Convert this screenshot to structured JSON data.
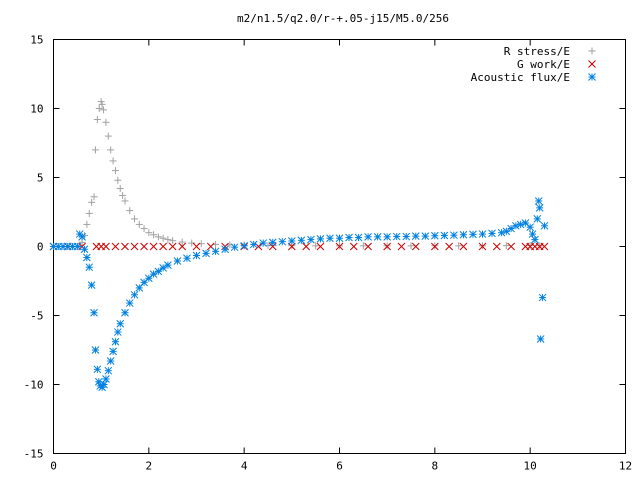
{
  "chart_data": {
    "type": "scatter",
    "title": "m2/n1.5/q2.0/r-+.05-j15/M5.0/256",
    "xlabel": "",
    "ylabel": "",
    "xlim": [
      0,
      12
    ],
    "ylim": [
      -15,
      15
    ],
    "x_ticks": [
      0,
      2,
      4,
      6,
      8,
      10,
      12
    ],
    "y_ticks": [
      -15,
      -10,
      -5,
      0,
      5,
      10,
      15
    ],
    "x_tick_labels": [
      "0",
      "2",
      "4",
      "6",
      "8",
      "10",
      "12"
    ],
    "y_tick_labels": [
      "-15",
      "-10",
      "-5",
      "0",
      "5",
      "10",
      "15"
    ],
    "grid": false,
    "legend_position": "top-right",
    "series": [
      {
        "name": "R stress/E",
        "marker": "plus",
        "color": "#a0a0a0",
        "points": [
          [
            0.0,
            0.0
          ],
          [
            0.1,
            0.0
          ],
          [
            0.2,
            0.0
          ],
          [
            0.3,
            0.0
          ],
          [
            0.4,
            0.0
          ],
          [
            0.5,
            0.0
          ],
          [
            0.55,
            0.1
          ],
          [
            0.6,
            0.3
          ],
          [
            0.65,
            0.8
          ],
          [
            0.7,
            1.6
          ],
          [
            0.75,
            2.4
          ],
          [
            0.8,
            3.2
          ],
          [
            0.85,
            3.6
          ],
          [
            0.88,
            7.0
          ],
          [
            0.92,
            9.2
          ],
          [
            0.96,
            10.0
          ],
          [
            1.0,
            10.5
          ],
          [
            1.02,
            10.3
          ],
          [
            1.05,
            9.9
          ],
          [
            1.1,
            9.0
          ],
          [
            1.15,
            8.0
          ],
          [
            1.2,
            7.0
          ],
          [
            1.25,
            6.2
          ],
          [
            1.3,
            5.5
          ],
          [
            1.35,
            4.8
          ],
          [
            1.4,
            4.2
          ],
          [
            1.45,
            3.7
          ],
          [
            1.5,
            3.3
          ],
          [
            1.6,
            2.6
          ],
          [
            1.7,
            2.0
          ],
          [
            1.8,
            1.6
          ],
          [
            1.9,
            1.3
          ],
          [
            2.0,
            1.0
          ],
          [
            2.1,
            0.85
          ],
          [
            2.2,
            0.7
          ],
          [
            2.3,
            0.6
          ],
          [
            2.4,
            0.5
          ],
          [
            2.5,
            0.42
          ],
          [
            2.7,
            0.32
          ],
          [
            2.9,
            0.25
          ],
          [
            3.1,
            0.2
          ],
          [
            3.4,
            0.15
          ],
          [
            3.7,
            0.12
          ],
          [
            4.0,
            0.1
          ],
          [
            4.5,
            0.08
          ],
          [
            5.0,
            0.06
          ],
          [
            5.5,
            0.05
          ],
          [
            6.0,
            0.05
          ],
          [
            6.5,
            0.05
          ],
          [
            7.0,
            0.05
          ],
          [
            7.5,
            0.05
          ],
          [
            8.0,
            0.05
          ],
          [
            8.5,
            0.05
          ],
          [
            9.0,
            0.05
          ],
          [
            9.5,
            0.06
          ],
          [
            10.0,
            0.08
          ],
          [
            10.2,
            0.05
          ]
        ]
      },
      {
        "name": "G work/E",
        "marker": "cross",
        "color": "#cc0000",
        "points": [
          [
            0.0,
            0.0
          ],
          [
            0.3,
            0.0
          ],
          [
            0.6,
            0.0
          ],
          [
            0.9,
            0.0
          ],
          [
            1.0,
            0.0
          ],
          [
            1.1,
            0.0
          ],
          [
            1.3,
            0.0
          ],
          [
            1.5,
            0.0
          ],
          [
            1.7,
            0.0
          ],
          [
            1.9,
            0.0
          ],
          [
            2.1,
            0.0
          ],
          [
            2.3,
            0.0
          ],
          [
            2.5,
            0.0
          ],
          [
            2.7,
            0.0
          ],
          [
            3.0,
            0.0
          ],
          [
            3.3,
            0.0
          ],
          [
            3.6,
            0.0
          ],
          [
            4.0,
            0.0
          ],
          [
            4.3,
            0.0
          ],
          [
            4.6,
            0.0
          ],
          [
            5.0,
            0.0
          ],
          [
            5.3,
            0.0
          ],
          [
            5.6,
            0.0
          ],
          [
            6.0,
            0.0
          ],
          [
            6.3,
            0.0
          ],
          [
            6.6,
            0.0
          ],
          [
            7.0,
            0.0
          ],
          [
            7.3,
            0.0
          ],
          [
            7.6,
            0.0
          ],
          [
            8.0,
            0.0
          ],
          [
            8.3,
            0.0
          ],
          [
            8.6,
            0.0
          ],
          [
            9.0,
            0.0
          ],
          [
            9.3,
            0.0
          ],
          [
            9.6,
            0.0
          ],
          [
            9.9,
            0.0
          ],
          [
            10.0,
            0.0
          ],
          [
            10.1,
            0.0
          ],
          [
            10.2,
            0.0
          ],
          [
            10.3,
            0.0
          ]
        ]
      },
      {
        "name": "Acoustic flux/E",
        "marker": "star",
        "color": "#0080e0",
        "points": [
          [
            0.0,
            0.0
          ],
          [
            0.1,
            0.0
          ],
          [
            0.2,
            0.0
          ],
          [
            0.3,
            0.0
          ],
          [
            0.4,
            0.0
          ],
          [
            0.5,
            0.0
          ],
          [
            0.55,
            0.9
          ],
          [
            0.6,
            0.7
          ],
          [
            0.65,
            -0.2
          ],
          [
            0.7,
            -0.8
          ],
          [
            0.75,
            -1.5
          ],
          [
            0.8,
            -2.8
          ],
          [
            0.85,
            -4.8
          ],
          [
            0.88,
            -7.5
          ],
          [
            0.92,
            -8.9
          ],
          [
            0.95,
            -9.8
          ],
          [
            0.98,
            -10.1
          ],
          [
            1.02,
            -10.2
          ],
          [
            1.06,
            -10.0
          ],
          [
            1.1,
            -9.6
          ],
          [
            1.15,
            -9.0
          ],
          [
            1.2,
            -8.3
          ],
          [
            1.25,
            -7.6
          ],
          [
            1.3,
            -6.9
          ],
          [
            1.35,
            -6.2
          ],
          [
            1.4,
            -5.6
          ],
          [
            1.5,
            -4.8
          ],
          [
            1.6,
            -4.1
          ],
          [
            1.7,
            -3.5
          ],
          [
            1.8,
            -3.0
          ],
          [
            1.9,
            -2.6
          ],
          [
            2.0,
            -2.3
          ],
          [
            2.1,
            -2.0
          ],
          [
            2.2,
            -1.8
          ],
          [
            2.3,
            -1.55
          ],
          [
            2.4,
            -1.35
          ],
          [
            2.6,
            -1.05
          ],
          [
            2.8,
            -0.85
          ],
          [
            3.0,
            -0.65
          ],
          [
            3.2,
            -0.5
          ],
          [
            3.4,
            -0.35
          ],
          [
            3.6,
            -0.2
          ],
          [
            3.8,
            -0.05
          ],
          [
            4.0,
            0.05
          ],
          [
            4.2,
            0.15
          ],
          [
            4.4,
            0.25
          ],
          [
            4.6,
            0.3
          ],
          [
            4.8,
            0.35
          ],
          [
            5.0,
            0.4
          ],
          [
            5.2,
            0.45
          ],
          [
            5.4,
            0.5
          ],
          [
            5.6,
            0.55
          ],
          [
            5.8,
            0.6
          ],
          [
            6.0,
            0.6
          ],
          [
            6.2,
            0.65
          ],
          [
            6.4,
            0.65
          ],
          [
            6.6,
            0.7
          ],
          [
            6.8,
            0.7
          ],
          [
            7.0,
            0.7
          ],
          [
            7.2,
            0.72
          ],
          [
            7.4,
            0.72
          ],
          [
            7.6,
            0.75
          ],
          [
            7.8,
            0.75
          ],
          [
            8.0,
            0.78
          ],
          [
            8.2,
            0.8
          ],
          [
            8.4,
            0.82
          ],
          [
            8.6,
            0.85
          ],
          [
            8.8,
            0.88
          ],
          [
            9.0,
            0.9
          ],
          [
            9.2,
            0.95
          ],
          [
            9.4,
            1.0
          ],
          [
            9.5,
            1.1
          ],
          [
            9.6,
            1.3
          ],
          [
            9.7,
            1.5
          ],
          [
            9.8,
            1.6
          ],
          [
            9.9,
            1.7
          ],
          [
            10.0,
            1.4
          ],
          [
            10.05,
            0.9
          ],
          [
            10.1,
            0.5
          ],
          [
            10.15,
            2.0
          ],
          [
            10.18,
            3.3
          ],
          [
            10.2,
            2.8
          ],
          [
            10.22,
            -6.7
          ],
          [
            10.26,
            -3.7
          ],
          [
            10.3,
            1.5
          ]
        ]
      }
    ]
  }
}
